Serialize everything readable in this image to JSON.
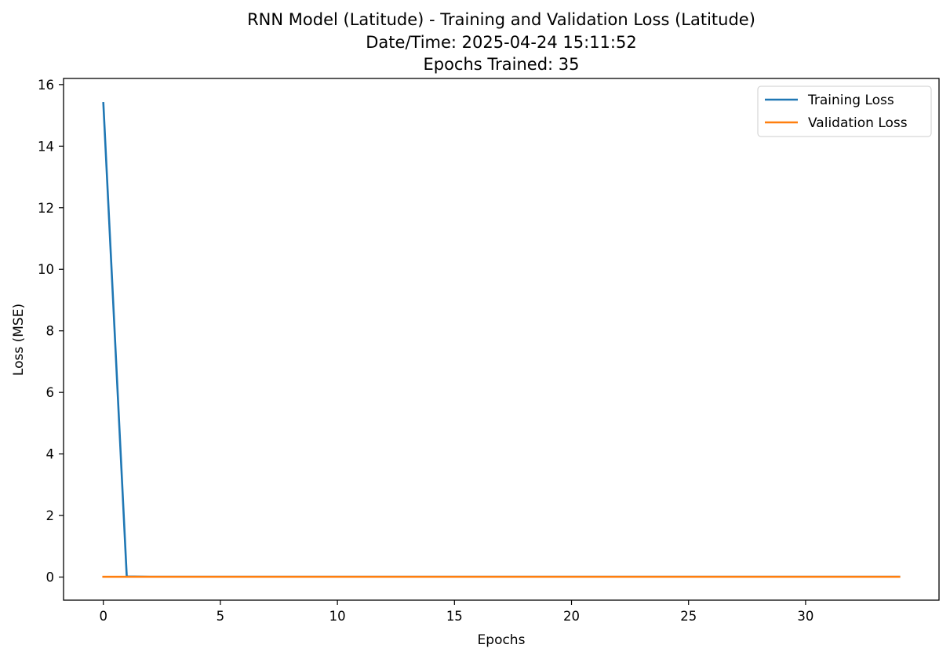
{
  "chart_data": {
    "type": "line",
    "title_lines": [
      "RNN Model (Latitude) - Training and Validation Loss (Latitude)",
      "Date/Time: 2025-04-24 15:11:52",
      "Epochs Trained: 35"
    ],
    "xlabel": "Epochs",
    "ylabel": "Loss (MSE)",
    "xlim": [
      -1.7,
      35.7
    ],
    "ylim": [
      -0.75,
      16.2
    ],
    "x_ticks": [
      0,
      5,
      10,
      15,
      20,
      25,
      30
    ],
    "y_ticks": [
      0,
      2,
      4,
      6,
      8,
      10,
      12,
      14,
      16
    ],
    "grid": false,
    "legend_position": "upper right",
    "x": [
      0,
      1,
      2,
      3,
      4,
      5,
      6,
      7,
      8,
      9,
      10,
      11,
      12,
      13,
      14,
      15,
      16,
      17,
      18,
      19,
      20,
      21,
      22,
      23,
      24,
      25,
      26,
      27,
      28,
      29,
      30,
      31,
      32,
      33,
      34
    ],
    "series": [
      {
        "name": "Training Loss",
        "color": "#1f77b4",
        "values": [
          15.4,
          0.02,
          0.01,
          0.01,
          0.01,
          0.01,
          0.01,
          0.01,
          0.01,
          0.01,
          0.01,
          0.01,
          0.01,
          0.01,
          0.01,
          0.01,
          0.01,
          0.01,
          0.01,
          0.01,
          0.01,
          0.01,
          0.01,
          0.01,
          0.01,
          0.01,
          0.01,
          0.01,
          0.01,
          0.01,
          0.01,
          0.01,
          0.01,
          0.01,
          0.01
        ]
      },
      {
        "name": "Validation Loss",
        "color": "#ff7f0e",
        "values": [
          0.01,
          0.01,
          0.01,
          0.01,
          0.01,
          0.01,
          0.01,
          0.01,
          0.01,
          0.01,
          0.01,
          0.01,
          0.01,
          0.01,
          0.01,
          0.01,
          0.01,
          0.01,
          0.01,
          0.01,
          0.01,
          0.01,
          0.01,
          0.01,
          0.01,
          0.01,
          0.01,
          0.01,
          0.01,
          0.01,
          0.01,
          0.01,
          0.01,
          0.01,
          0.01
        ]
      }
    ]
  }
}
